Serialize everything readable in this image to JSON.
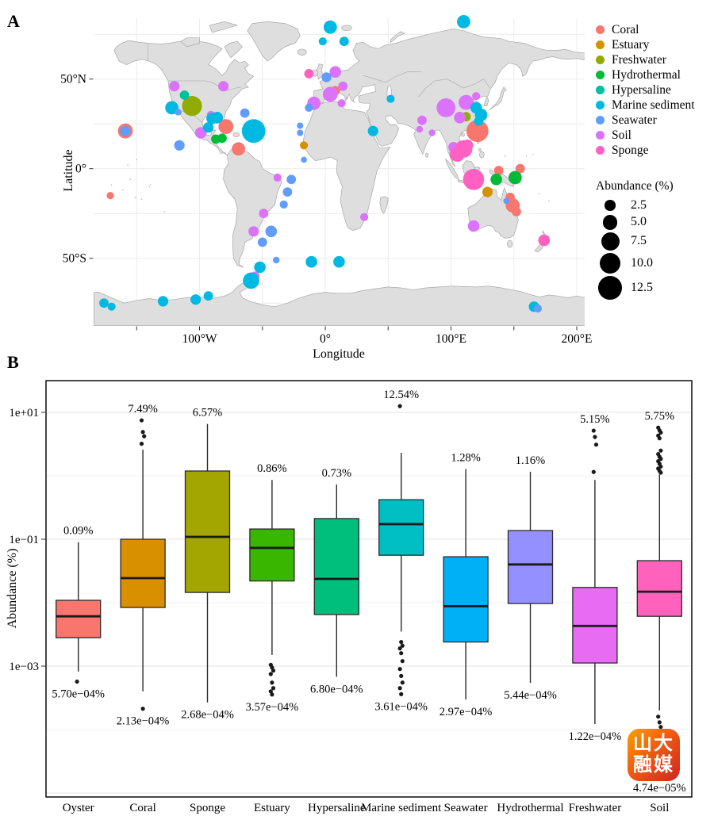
{
  "figure": {
    "panel_a_label": "A",
    "panel_b_label": "B"
  },
  "watermark": {
    "line1": "山大",
    "line2": "融媒"
  },
  "chart_data": [
    {
      "id": "global-distribution-map",
      "type": "scatter",
      "title": "",
      "xlabel": "Longitude",
      "ylabel": "Latitude",
      "xlim": [
        -184,
        207
      ],
      "ylim": [
        -88,
        86
      ],
      "x_ticks": [
        {
          "v": -100,
          "label": "100°W"
        },
        {
          "v": 0,
          "label": "0°"
        },
        {
          "v": 100,
          "label": "100°E"
        },
        {
          "v": 200,
          "label": "200°E"
        }
      ],
      "x_minor_ticks": [
        -150,
        -50,
        50,
        150
      ],
      "y_ticks": [
        {
          "v": 50,
          "label": "50°N"
        },
        {
          "v": 0,
          "label": "0°"
        },
        {
          "v": -50,
          "label": "50°S"
        }
      ],
      "grid_lons": [
        -150,
        -100,
        -50,
        0,
        50,
        100,
        150,
        200
      ],
      "grid_lats": [
        -75,
        -50,
        -25,
        0,
        25,
        50,
        75
      ],
      "legend": {
        "categories": [
          {
            "name": "Coral",
            "color": "#F8766D"
          },
          {
            "name": "Estuary",
            "color": "#D39200"
          },
          {
            "name": "Freshwater",
            "color": "#93AA00"
          },
          {
            "name": "Hydrothermal",
            "color": "#00BA38"
          },
          {
            "name": "Hypersaline",
            "color": "#00C19F"
          },
          {
            "name": "Marine sediment",
            "color": "#00B9E3"
          },
          {
            "name": "Seawater",
            "color": "#619CFF"
          },
          {
            "name": "Soil",
            "color": "#DB72FB"
          },
          {
            "name": "Sponge",
            "color": "#FF61C3"
          }
        ],
        "size_title": "Abundance (%)",
        "sizes": [
          {
            "value": 2.5,
            "label": "2.5"
          },
          {
            "value": 5,
            "label": "5.0"
          },
          {
            "value": 7.5,
            "label": "7.5"
          },
          {
            "value": 10,
            "label": "10.0"
          },
          {
            "value": 12.5,
            "label": "12.5"
          }
        ]
      },
      "groups": [
        {
          "name": "Coral",
          "points": [
            [
              -159,
              21,
              5
            ],
            [
              -171,
              -15,
              1.2
            ],
            [
              -79,
              23.5,
              5
            ],
            [
              -69,
              11,
              4
            ],
            [
              8,
              43.5,
              2
            ],
            [
              121,
              21,
              11
            ],
            [
              155,
              0,
              2
            ],
            [
              138,
              -1,
              2
            ],
            [
              147,
              -16,
              2
            ],
            [
              149,
              -20.5,
              4.5
            ],
            [
              152,
              -24,
              2
            ]
          ]
        },
        {
          "name": "Estuary",
          "points": [
            [
              -17,
              13,
              1.5
            ],
            [
              129,
              -13,
              2.5
            ]
          ]
        },
        {
          "name": "Freshwater",
          "points": [
            [
              -106,
              35,
              9
            ],
            [
              112,
              29,
              2
            ]
          ]
        },
        {
          "name": "Hydrothermal",
          "points": [
            [
              -87,
              16.5,
              2
            ],
            [
              -82,
              17,
              2
            ],
            [
              151,
              -5,
              4
            ],
            [
              136,
              -6,
              3
            ]
          ]
        },
        {
          "name": "Hypersaline",
          "points": [
            [
              -112,
              41,
              2
            ]
          ]
        },
        {
          "name": "Soil",
          "points": [
            [
              -120,
              46,
              2.5
            ],
            [
              -81,
              46,
              2.5
            ],
            [
              -99,
              20,
              3
            ],
            [
              -91,
              30,
              1.5
            ],
            [
              8,
              54,
              3
            ],
            [
              14,
              46,
              2
            ],
            [
              4,
              41.5,
              5
            ],
            [
              -9,
              36.5,
              4
            ],
            [
              13,
              36.5,
              1.5
            ],
            [
              77,
              27,
              2
            ],
            [
              75,
              22,
              1
            ],
            [
              85,
              20,
              1
            ],
            [
              96,
              34,
              8
            ],
            [
              112,
              37,
              5
            ],
            [
              107,
              28.5,
              3
            ],
            [
              102,
              12,
              2.5
            ],
            [
              120,
              40.5,
              1.5
            ],
            [
              118,
              -32,
              3
            ],
            [
              31,
              -27,
              1.5
            ],
            [
              -38,
              -5,
              1.5
            ],
            [
              -49,
              -25,
              2
            ],
            [
              -57,
              -35,
              2.5
            ],
            [
              -56,
              -60,
              2
            ]
          ]
        },
        {
          "name": "Marine sediment",
          "points": [
            [
              -122,
              34,
              4
            ],
            [
              -90,
              28,
              3
            ],
            [
              -86,
              28.5,
              3
            ],
            [
              -93,
              23,
              2.5
            ],
            [
              -57,
              21,
              12.54
            ],
            [
              4,
              79,
              4
            ],
            [
              -2,
              71,
              1.5
            ],
            [
              15,
              71,
              2
            ],
            [
              110,
              82,
              4
            ],
            [
              52,
              39,
              1.5
            ],
            [
              38,
              21,
              2.5
            ],
            [
              120,
              34,
              3
            ],
            [
              124,
              30,
              3.5
            ],
            [
              122,
              26.5,
              2
            ],
            [
              -11,
              -52,
              3
            ],
            [
              11,
              -52,
              3
            ],
            [
              -52,
              -55,
              3
            ],
            [
              -59,
              -62.5,
              6
            ],
            [
              -129,
              -74,
              2.5
            ],
            [
              -103,
              -73,
              2.5
            ],
            [
              -93,
              -71,
              2
            ],
            [
              -176,
              -75,
              2
            ],
            [
              -170,
              -77,
              1.5
            ],
            [
              166,
              -77,
              2.5
            ]
          ]
        },
        {
          "name": "Seawater",
          "points": [
            [
              -159,
              21,
              2.5
            ],
            [
              -117,
              31.5,
              1
            ],
            [
              -64,
              31,
              2
            ],
            [
              -116,
              13,
              2.5
            ],
            [
              1,
              51,
              2.2
            ],
            [
              -13,
              34,
              1.5
            ],
            [
              -20,
              24,
              0.9
            ],
            [
              -20,
              20,
              0.9
            ],
            [
              -17,
              5,
              0.8
            ],
            [
              -27,
              -6,
              2
            ],
            [
              -30,
              -13,
              2
            ],
            [
              -33,
              -20,
              1.5
            ],
            [
              -43,
              -35,
              3
            ],
            [
              -50,
              -41,
              2
            ],
            [
              -39,
              -51,
              1
            ],
            [
              144,
              -18,
              0.8
            ],
            [
              169,
              -78,
              1.5
            ]
          ]
        },
        {
          "name": "Sponge",
          "points": [
            [
              -13,
              53,
              2
            ],
            [
              174,
              -40,
              3
            ],
            [
              110,
              11,
              7
            ],
            [
              105,
              8,
              5
            ],
            [
              118,
              -6,
              10
            ],
            [
              113,
              13,
              3
            ]
          ]
        }
      ]
    },
    {
      "id": "abundance-boxplot",
      "type": "box",
      "title": "",
      "xlabel": "",
      "ylabel": "Abundance (%)",
      "y_scale": "log10",
      "y_ticks": [
        {
          "v": 10,
          "label": "1e+01"
        },
        {
          "v": 0.1,
          "label": "1e−01"
        },
        {
          "v": 0.001,
          "label": "1e−03"
        }
      ],
      "grid_major": [
        10,
        0.1,
        0.001,
        1e-05
      ],
      "grid_minor": [
        1,
        0.01,
        0.0001
      ],
      "series": [
        {
          "name": "Oyster",
          "color": "#F8766D",
          "whisker_low": 0.00082,
          "q1": 0.0028,
          "median": 0.0061,
          "q3": 0.0109,
          "whisker_high": 0.09,
          "outliers_high": [],
          "outliers_low": [
            0.00057
          ],
          "max_label": "0.09%",
          "min_label": "5.70e−04%"
        },
        {
          "name": "Coral",
          "color": "#D89000",
          "whisker_low": 0.0004,
          "q1": 0.0084,
          "median": 0.0244,
          "q3": 0.1,
          "whisker_high": 2.59,
          "outliers_high": [
            7.49,
            4.9,
            4.2,
            3.2
          ],
          "outliers_low": [
            0.000213
          ],
          "max_label": "7.49%",
          "min_label": "2.13e−04%"
        },
        {
          "name": "Sponge",
          "color": "#A3A500",
          "whisker_low": 0.000268,
          "q1": 0.0145,
          "median": 0.109,
          "q3": 1.19,
          "whisker_high": 6.57,
          "outliers_high": [],
          "outliers_low": [],
          "max_label": "6.57%",
          "min_label": "2.68e−04%"
        },
        {
          "name": "Estuary",
          "color": "#39B600",
          "whisker_low": 0.0015,
          "q1": 0.022,
          "median": 0.073,
          "q3": 0.145,
          "whisker_high": 0.86,
          "outliers_high": [],
          "outliers_low": [
            0.00105,
            0.00095,
            0.00085,
            0.00075,
            0.00055,
            0.00045,
            0.0004,
            0.000357
          ],
          "max_label": "0.86%",
          "min_label": "3.57e−04%"
        },
        {
          "name": "Hypersaline",
          "color": "#00BF7D",
          "whisker_low": 0.00068,
          "q1": 0.0065,
          "median": 0.0237,
          "q3": 0.212,
          "whisker_high": 0.73,
          "outliers_high": [],
          "outliers_low": [],
          "max_label": "0.73%",
          "min_label": "6.80e−04%"
        },
        {
          "name": "Marine sediment",
          "color": "#00BFC4",
          "whisker_low": 0.0035,
          "q1": 0.056,
          "median": 0.173,
          "q3": 0.42,
          "whisker_high": 2.3,
          "outliers_high": [
            12.54
          ],
          "outliers_low": [
            0.0024,
            0.0021,
            0.0019,
            0.0016,
            0.0012,
            0.0009,
            0.0007,
            0.00055,
            0.00045,
            0.000361
          ],
          "max_label": "12.54%",
          "min_label": "3.61e−04%"
        },
        {
          "name": "Seawater",
          "color": "#00B0F6",
          "whisker_low": 0.000297,
          "q1": 0.0024,
          "median": 0.0088,
          "q3": 0.053,
          "whisker_high": 1.28,
          "outliers_high": [],
          "outliers_low": [],
          "max_label": "1.28%",
          "min_label": "2.97e−04%"
        },
        {
          "name": "Hydrothermal",
          "color": "#9590FF",
          "whisker_low": 0.000544,
          "q1": 0.0097,
          "median": 0.04,
          "q3": 0.137,
          "whisker_high": 1.16,
          "outliers_high": [],
          "outliers_low": [],
          "max_label": "1.16%",
          "min_label": "5.44e−04%"
        },
        {
          "name": "Freshwater",
          "color": "#E76BF3",
          "whisker_low": 0.000122,
          "q1": 0.00112,
          "median": 0.0043,
          "q3": 0.0174,
          "whisker_high": 0.86,
          "outliers_high": [
            5.15,
            4.1,
            3.1,
            1.15
          ],
          "outliers_low": [],
          "max_label": "5.15%",
          "min_label": "1.22e−04%"
        },
        {
          "name": "Soil",
          "color": "#FF62BC",
          "whisker_low": 0.0002,
          "q1": 0.0061,
          "median": 0.0149,
          "q3": 0.046,
          "whisker_high": 1.05,
          "outliers_high": [
            5.75,
            5.2,
            4.8,
            4.3,
            3.9,
            2.5,
            2.2,
            2.0,
            1.85,
            1.7,
            1.55,
            1.4,
            1.3,
            1.2,
            1.12
          ],
          "outliers_low": [
            0.00016,
            0.00013,
            0.00011,
            9e-05,
            7e-05,
            5.8e-05,
            4.74e-05
          ],
          "max_label": "5.75%",
          "min_label": "4.74e−05%",
          "min_label_dy": 52
        }
      ]
    }
  ]
}
